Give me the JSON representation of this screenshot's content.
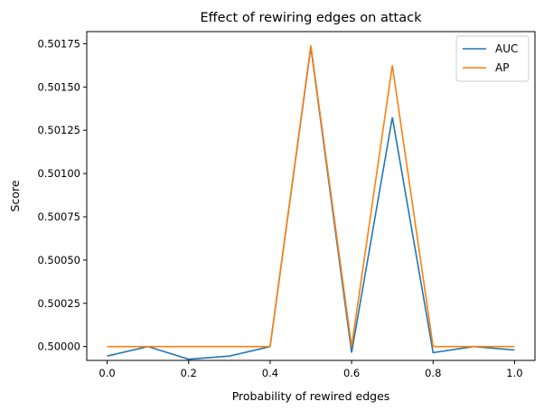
{
  "chart_data": {
    "type": "line",
    "title": "Effect of rewiring edges on attack",
    "xlabel": "Probability of rewired edges",
    "ylabel": "Score",
    "xlim": [
      -0.05,
      1.05
    ],
    "ylim": [
      0.49992,
      0.50182
    ],
    "xticks": [
      0.0,
      0.2,
      0.4,
      0.6,
      0.8,
      1.0
    ],
    "xtick_labels": [
      "0.0",
      "0.2",
      "0.4",
      "0.6",
      "0.8",
      "1.0"
    ],
    "yticks": [
      0.5,
      0.50025,
      0.5005,
      0.50075,
      0.501,
      0.50125,
      0.5015,
      0.50175
    ],
    "ytick_labels": [
      "0.50000",
      "0.50025",
      "0.50050",
      "0.50075",
      "0.50100",
      "0.50125",
      "0.50150",
      "0.50175"
    ],
    "grid": false,
    "legend_position": "top-right",
    "x": [
      0.0,
      0.1,
      0.2,
      0.3,
      0.4,
      0.5,
      0.6,
      0.7,
      0.8,
      0.9,
      1.0
    ],
    "series": [
      {
        "name": "AUC",
        "color": "#1f77b4",
        "values": [
          0.499945,
          0.5,
          0.499927,
          0.499945,
          0.5,
          0.50173,
          0.499965,
          0.501325,
          0.499965,
          0.5,
          0.49998
        ]
      },
      {
        "name": "AP",
        "color": "#ff7f0e",
        "values": [
          0.5,
          0.5,
          0.5,
          0.5,
          0.5,
          0.50174,
          0.5,
          0.501625,
          0.5,
          0.5,
          0.5
        ]
      }
    ]
  }
}
